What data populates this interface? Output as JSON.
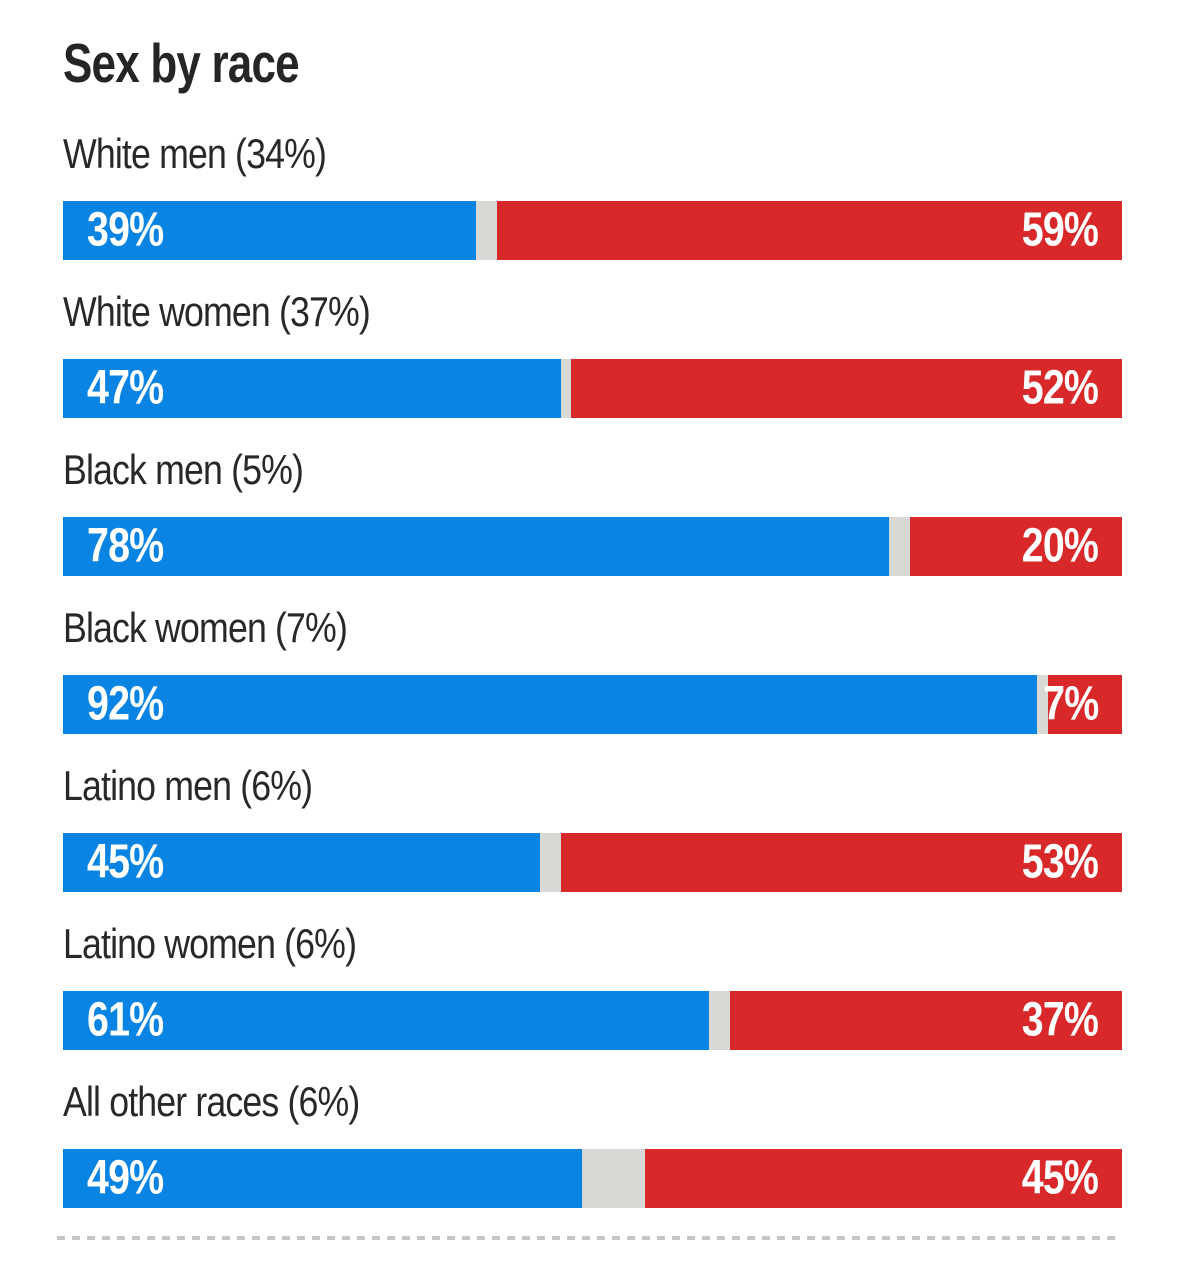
{
  "title": "Sex by race",
  "colors": {
    "blue": "#0a84e2",
    "red": "#d9282a",
    "gap": "#d8d8d5",
    "dash": "#c6c6c6",
    "title_text": "#232527",
    "label_text": "#282828",
    "value_text": "#ffffff",
    "background": "#ffffff"
  },
  "chart_data": {
    "type": "bar",
    "orientation": "horizontal",
    "stacked": true,
    "title": "Sex by race",
    "value_suffix": "%",
    "axis_range": [
      0,
      100
    ],
    "legend": "none",
    "series": [
      {
        "name": "blue-left-segment",
        "color": "#0a84e2"
      },
      {
        "name": "red-right-segment",
        "color": "#d9282a"
      }
    ],
    "rows": [
      {
        "label": "White men (34%)",
        "blue": 39,
        "red": 59
      },
      {
        "label": "White women (37%)",
        "blue": 47,
        "red": 52
      },
      {
        "label": "Black men (5%)",
        "blue": 78,
        "red": 20
      },
      {
        "label": "Black women (7%)",
        "blue": 92,
        "red": 7
      },
      {
        "label": "Latino men (6%)",
        "blue": 45,
        "red": 53
      },
      {
        "label": "Latino women (6%)",
        "blue": 61,
        "red": 37
      },
      {
        "label": "All other races (6%)",
        "blue": 49,
        "red": 45
      }
    ]
  }
}
